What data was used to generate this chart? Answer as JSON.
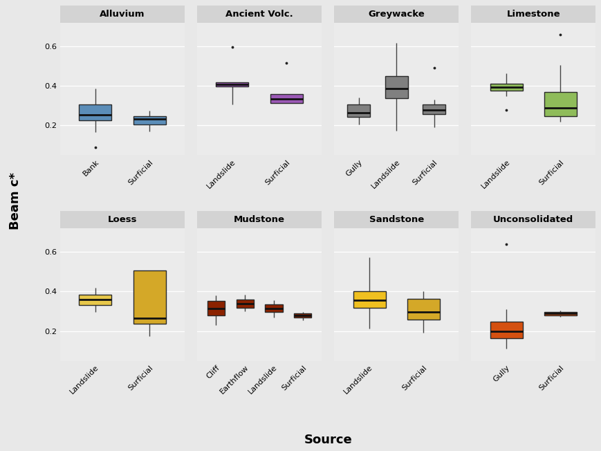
{
  "panels": [
    {
      "title": "Alluvium",
      "row": 0,
      "col": 0,
      "boxes": [
        {
          "label": "Bank",
          "color": "#5b8db8",
          "q1": 0.225,
          "median": 0.255,
          "q3": 0.308,
          "whislo": 0.165,
          "whishi": 0.385,
          "fliers": [
            0.09
          ]
        },
        {
          "label": "Surficial",
          "color": "#5b8db8",
          "q1": 0.205,
          "median": 0.232,
          "q3": 0.248,
          "whislo": 0.17,
          "whishi": 0.275,
          "fliers": []
        }
      ]
    },
    {
      "title": "Ancient Volc.",
      "row": 0,
      "col": 1,
      "boxes": [
        {
          "label": "Landslide",
          "color": "#9b59b6",
          "q1": 0.398,
          "median": 0.408,
          "q3": 0.418,
          "whislo": 0.305,
          "whishi": 0.418,
          "fliers": [
            0.595
          ]
        },
        {
          "label": "Surficial",
          "color": "#9b59b6",
          "q1": 0.315,
          "median": 0.335,
          "q3": 0.358,
          "whislo": 0.315,
          "whishi": 0.358,
          "fliers": [
            0.515
          ]
        }
      ]
    },
    {
      "title": "Greywacke",
      "row": 0,
      "col": 2,
      "boxes": [
        {
          "label": "Gully",
          "color": "#808080",
          "q1": 0.245,
          "median": 0.265,
          "q3": 0.305,
          "whislo": 0.205,
          "whishi": 0.34,
          "fliers": []
        },
        {
          "label": "Landslide",
          "color": "#808080",
          "q1": 0.338,
          "median": 0.385,
          "q3": 0.448,
          "whislo": 0.175,
          "whishi": 0.618,
          "fliers": []
        },
        {
          "label": "Surficial",
          "color": "#808080",
          "q1": 0.258,
          "median": 0.278,
          "q3": 0.308,
          "whislo": 0.19,
          "whishi": 0.33,
          "fliers": [
            0.49
          ]
        }
      ]
    },
    {
      "title": "Limestone",
      "row": 0,
      "col": 3,
      "boxes": [
        {
          "label": "Landslide",
          "color": "#8fbc5a",
          "q1": 0.375,
          "median": 0.395,
          "q3": 0.41,
          "whislo": 0.348,
          "whishi": 0.465,
          "fliers": [
            0.278
          ]
        },
        {
          "label": "Surficial",
          "color": "#8fbc5a",
          "q1": 0.248,
          "median": 0.288,
          "q3": 0.368,
          "whislo": 0.218,
          "whishi": 0.505,
          "fliers": [
            0.658
          ]
        }
      ]
    },
    {
      "title": "Loess",
      "row": 1,
      "col": 0,
      "boxes": [
        {
          "label": "Landslide",
          "color": "#e8c84a",
          "q1": 0.33,
          "median": 0.36,
          "q3": 0.385,
          "whislo": 0.295,
          "whishi": 0.418,
          "fliers": []
        },
        {
          "label": "Surficial",
          "color": "#d4a828",
          "q1": 0.238,
          "median": 0.265,
          "q3": 0.505,
          "whislo": 0.175,
          "whishi": 0.505,
          "fliers": []
        }
      ]
    },
    {
      "title": "Mudstone",
      "row": 1,
      "col": 1,
      "boxes": [
        {
          "label": "Cliff",
          "color": "#8b2200",
          "q1": 0.278,
          "median": 0.315,
          "q3": 0.352,
          "whislo": 0.232,
          "whishi": 0.382,
          "fliers": []
        },
        {
          "label": "Earthflow",
          "color": "#8b2200",
          "q1": 0.318,
          "median": 0.338,
          "q3": 0.358,
          "whislo": 0.3,
          "whishi": 0.385,
          "fliers": []
        },
        {
          "label": "Landslide",
          "color": "#8b2200",
          "q1": 0.295,
          "median": 0.315,
          "q3": 0.335,
          "whislo": 0.268,
          "whishi": 0.355,
          "fliers": []
        },
        {
          "label": "Surficial",
          "color": "#8b2200",
          "q1": 0.268,
          "median": 0.278,
          "q3": 0.29,
          "whislo": 0.255,
          "whishi": 0.298,
          "fliers": []
        }
      ]
    },
    {
      "title": "Sandstone",
      "row": 1,
      "col": 2,
      "boxes": [
        {
          "label": "Landslide",
          "color": "#f0c020",
          "q1": 0.318,
          "median": 0.355,
          "q3": 0.402,
          "whislo": 0.212,
          "whishi": 0.572,
          "fliers": []
        },
        {
          "label": "Surficial",
          "color": "#d4a828",
          "q1": 0.258,
          "median": 0.295,
          "q3": 0.362,
          "whislo": 0.192,
          "whishi": 0.402,
          "fliers": []
        }
      ]
    },
    {
      "title": "Unconsolidated",
      "row": 1,
      "col": 3,
      "boxes": [
        {
          "label": "Gully",
          "color": "#d45010",
          "q1": 0.165,
          "median": 0.2,
          "q3": 0.248,
          "whislo": 0.112,
          "whishi": 0.312,
          "fliers": [
            0.638
          ]
        },
        {
          "label": "Surficial",
          "color": "#d45010",
          "q1": 0.278,
          "median": 0.29,
          "q3": 0.295,
          "whislo": 0.272,
          "whishi": 0.302,
          "fliers": []
        }
      ]
    }
  ],
  "ylim": [
    0.05,
    0.72
  ],
  "yticks": [
    0.2,
    0.4,
    0.6
  ],
  "ytick_labels": [
    "0.2",
    "0.4",
    "0.6"
  ],
  "ylabel": "Beam c*",
  "xlabel": "Source",
  "fig_bg": "#e8e8e8",
  "panel_bg": "#ebebeb",
  "grid_color": "#ffffff",
  "title_bg": "#d3d3d3",
  "box_width": 0.6,
  "linewidth": 1.0,
  "flier_size": 3.5
}
